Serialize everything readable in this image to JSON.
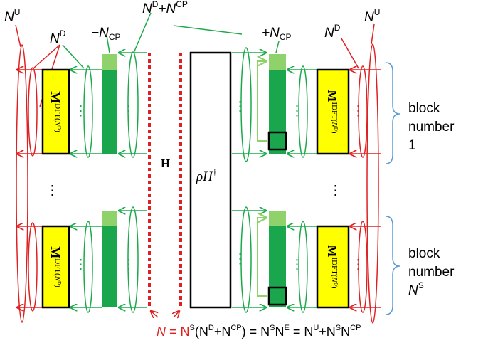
{
  "labels": {
    "nu_left": "N",
    "nu_left_sup": "U",
    "nd_left": "N",
    "nd_left_sup": "D",
    "ncp_neg": "−N",
    "ncp_neg_sub": "CP",
    "nd_ncp_top_a": "N",
    "nd_ncp_top_a_sup": "D",
    "nd_ncp_top_plus": "+N",
    "nd_ncp_top_b_sup": "CP",
    "ncp_pos": "+N",
    "ncp_pos_sub": "CP",
    "nd_right": "N",
    "nd_right_sup": "D",
    "nu_right": "N",
    "nu_right_sup": "U",
    "h_channel": "H",
    "rho_h": "ρH",
    "rho_h_dagger": "†",
    "dft_main": "M",
    "dft_sup": "DFT(",
    "dft_nd": "N",
    "dft_nd_sup": "D",
    "dft_close": ")",
    "idft_main": "M",
    "idft_sup": "IDFT(",
    "idft_nd": "N",
    "idft_nd_sup": "D",
    "idft_close": ")",
    "vdots": "⋮",
    "block1_line1": "block",
    "block1_line2": "number",
    "block1_line3": "1",
    "block2_line1": "block",
    "block2_line2": "number",
    "block2_line3": "N",
    "block2_line3_sup": "S"
  },
  "equation": {
    "n": "N",
    "eq1": " = N",
    "s1": "S",
    "p1": "(N",
    "d1": "D",
    "plus1": "+N",
    "cp1": "CP",
    "eq2": ") = N",
    "s2": "S",
    "n2": "N",
    "e2": "E",
    "eq3": " = N",
    "u3": "U",
    "plus3": "+N",
    "s3": "S",
    "n3": "N",
    "cp3": "CP"
  },
  "colors": {
    "red": "#e02020",
    "green": "#1aaa4a",
    "dark_green": "#1aa64c",
    "light_green": "#8fd16a",
    "yellow": "#ffff00",
    "blue": "#5b9bd5",
    "black": "#000000"
  }
}
